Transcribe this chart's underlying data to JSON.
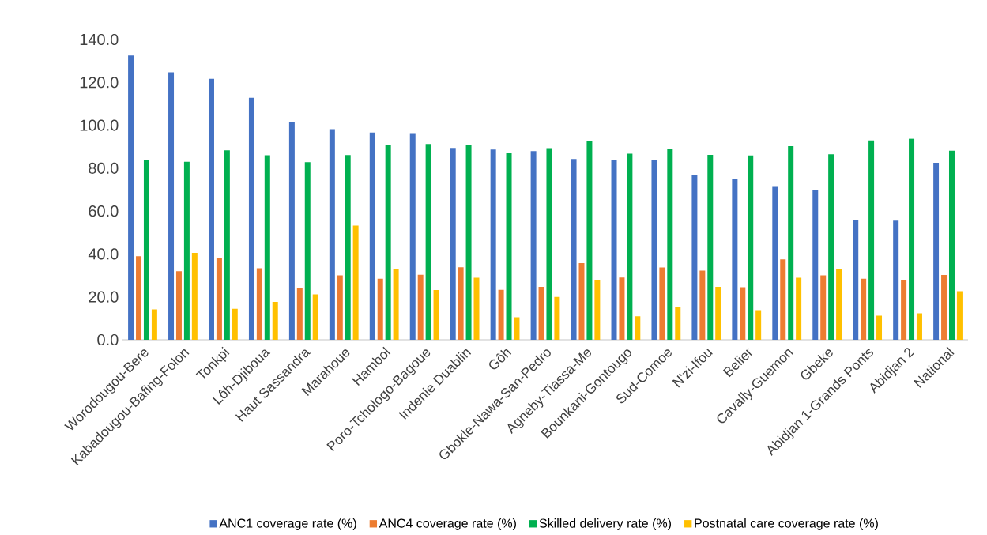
{
  "chart_data": {
    "type": "bar",
    "categories": [
      "Worodougou-Bere",
      "Kabadougou-Bafing-Folon",
      "Tonkpi",
      "Lôh-Djiboua",
      "Haut Sassandra",
      "Marahoue",
      "Hambol",
      "Poro-Tchologo-Bagoue",
      "Indenie Duablin",
      "Gôh",
      "Gbokle-Nawa-San-Pedro",
      "Agneby-Tiassa-Me",
      "Bounkani-Gontougo",
      "Sud-Comoe",
      "N'zi-Ifou",
      "Belier",
      "Cavally-Guemon",
      "Gbeke",
      "Abidjan 1-Grands Ponts",
      "Abidjan 2",
      "National"
    ],
    "series": [
      {
        "name": "ANC1 coverage rate (%)",
        "color": "#4472c4",
        "values": [
          132.5,
          124.7,
          121.7,
          112.8,
          101.3,
          98.2,
          96.6,
          96.3,
          89.4,
          88.7,
          88.0,
          84.3,
          83.6,
          83.6,
          76.8,
          75.0,
          71.3,
          69.7,
          56.0,
          55.5,
          82.5
        ]
      },
      {
        "name": "ANC4 coverage rate (%)",
        "color": "#ed7d31",
        "values": [
          39.0,
          32.0,
          38.0,
          33.3,
          24.0,
          30.0,
          28.5,
          30.3,
          33.8,
          23.3,
          24.7,
          35.7,
          29.0,
          33.7,
          32.2,
          24.5,
          37.5,
          30.0,
          28.5,
          28.0,
          30.2
        ]
      },
      {
        "name": "Skilled delivery rate (%)",
        "color": "#00b050",
        "values": [
          83.8,
          83.0,
          88.3,
          86.0,
          82.8,
          86.1,
          90.8,
          91.3,
          90.8,
          87.0,
          89.3,
          92.7,
          86.8,
          89.0,
          86.2,
          85.9,
          90.3,
          86.5,
          92.9,
          93.8,
          88.1
        ]
      },
      {
        "name": "Postnatal care coverage rate (%)",
        "color": "#ffc000",
        "values": [
          14.2,
          40.5,
          14.5,
          17.7,
          21.2,
          53.2,
          33.0,
          23.2,
          28.9,
          10.5,
          20.0,
          28.0,
          11.0,
          15.2,
          24.7,
          13.8,
          28.9,
          32.8,
          11.2,
          12.3,
          22.7
        ]
      }
    ],
    "ylim": [
      0,
      140
    ],
    "yticks": [
      {
        "value": 0,
        "label": "0.0"
      },
      {
        "value": 20,
        "label": "20.0"
      },
      {
        "value": 40,
        "label": "40.0"
      },
      {
        "value": 60,
        "label": "60.0"
      },
      {
        "value": 80,
        "label": "80.0"
      },
      {
        "value": 100,
        "label": "100.0"
      },
      {
        "value": 120,
        "label": "120.0"
      },
      {
        "value": 140,
        "label": "140.0"
      }
    ],
    "legend": "bottom"
  }
}
